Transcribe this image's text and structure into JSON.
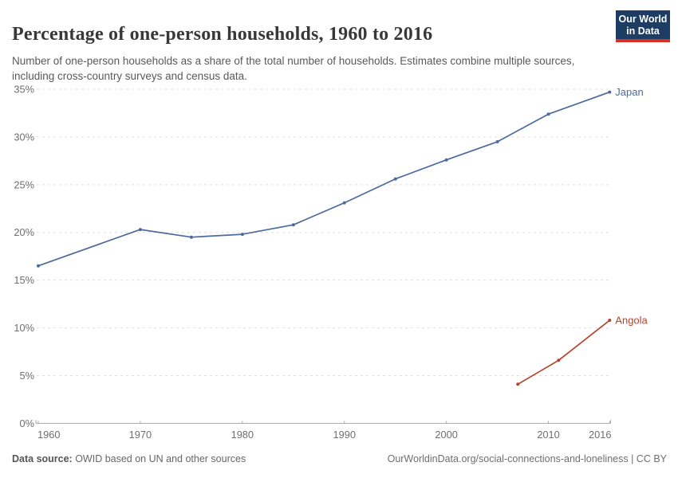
{
  "header": {
    "title": "Percentage of one-person households, 1960 to 2016",
    "subtitle": "Number of one-person households as a share of the total number of households. Estimates combine multiple sources, including cross-country surveys and census data.",
    "logo": {
      "line1": "Our World",
      "line2": "in Data",
      "bg_color": "#1d3d63",
      "bar_color": "#dc2e27"
    }
  },
  "chart_data": {
    "type": "line",
    "title": "Percentage of one-person households, 1960 to 2016",
    "xlabel": "",
    "ylabel": "",
    "xlim": [
      1960,
      2016
    ],
    "ylim": [
      0,
      35
    ],
    "x_ticks": [
      1960,
      1970,
      1980,
      1990,
      2000,
      2010,
      2016
    ],
    "y_ticks": [
      0,
      5,
      10,
      15,
      20,
      25,
      30,
      35
    ],
    "y_tick_suffix": "%",
    "grid": "horizontal dashed",
    "legend_position": "end-of-line labels",
    "colors": {
      "grid": "#dedede",
      "axis": "#a8a8a8",
      "tick_text": "#6e6e6e"
    },
    "series": [
      {
        "name": "Japan",
        "color": "#4C6A9C",
        "points": [
          [
            1960,
            16.5
          ],
          [
            1970,
            20.3
          ],
          [
            1975,
            19.5
          ],
          [
            1980,
            19.8
          ],
          [
            1985,
            20.8
          ],
          [
            1990,
            23.1
          ],
          [
            1995,
            25.6
          ],
          [
            2000,
            27.6
          ],
          [
            2005,
            29.5
          ],
          [
            2010,
            32.4
          ],
          [
            2016,
            34.7
          ]
        ]
      },
      {
        "name": "Angola",
        "color": "#B5432B",
        "points": [
          [
            2007,
            4.1
          ],
          [
            2011,
            6.6
          ],
          [
            2016,
            10.8
          ]
        ]
      }
    ]
  },
  "footer": {
    "datasource_label": "Data source:",
    "datasource_text": " OWID based on UN and other sources",
    "credit": "OurWorldinData.org/social-connections-and-loneliness | CC BY"
  }
}
